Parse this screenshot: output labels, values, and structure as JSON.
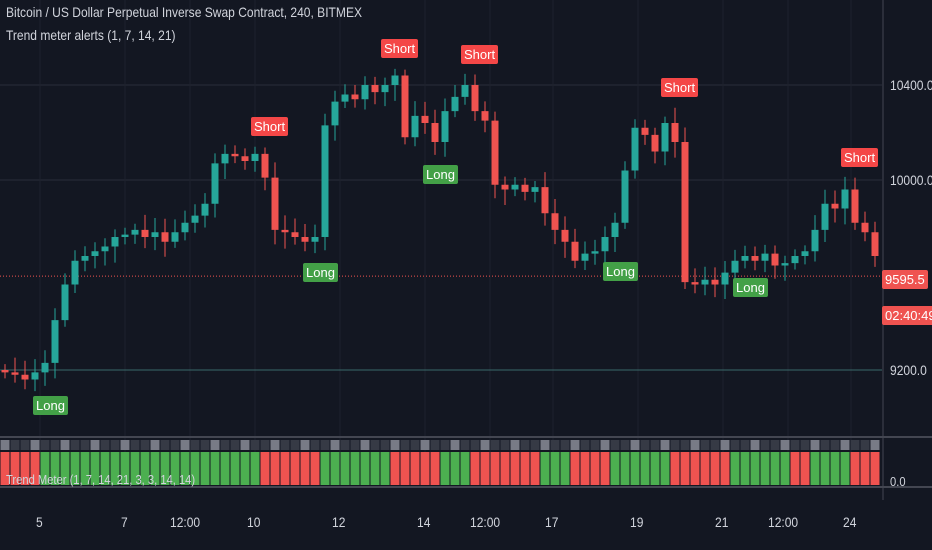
{
  "header": {
    "title": "Bitcoin / US Dollar Perpetual Inverse Swap Contract, 240, BITMEX",
    "indicator": "Trend meter alerts (1, 7, 14, 21)"
  },
  "panel": {
    "label": "Trend Meter (1, 7, 14, 21, 3, 3, 14, 14)",
    "axis_label": "0.0"
  },
  "price_axis": {
    "ticks": [
      "10400.0",
      "10000.0",
      "9200.0"
    ],
    "last_price": "9595.5",
    "countdown": "02:40:49"
  },
  "time_axis": {
    "ticks": [
      "5",
      "7",
      "12:00",
      "10",
      "12",
      "14",
      "12:00",
      "17",
      "19",
      "21",
      "12:00",
      "24"
    ]
  },
  "colors": {
    "background": "#131722",
    "up": "#26a69a",
    "down": "#ef5350",
    "long": "#43a047",
    "short": "#f44747"
  },
  "chart_data": {
    "type": "candlestick",
    "closes": [
      9190,
      9180,
      9160,
      9190,
      9230,
      9410,
      9560,
      9660,
      9680,
      9700,
      9720,
      9760,
      9770,
      9790,
      9760,
      9780,
      9740,
      9780,
      9820,
      9850,
      9900,
      10070,
      10110,
      10100,
      10080,
      10110,
      10010,
      9790,
      9780,
      9760,
      9740,
      9760,
      10230,
      10330,
      10360,
      10340,
      10400,
      10370,
      10400,
      10440,
      10180,
      10270,
      10240,
      10160,
      10290,
      10350,
      10400,
      10290,
      10250,
      9980,
      9960,
      9980,
      9950,
      9970,
      9860,
      9790,
      9740,
      9660,
      9690,
      9700,
      9760,
      9820,
      10040,
      10220,
      10190,
      10120,
      10240,
      10160,
      9570,
      9560,
      9580,
      9560,
      9610,
      9660,
      9680,
      9660,
      9690,
      9640,
      9650,
      9680,
      9700,
      9790,
      9900,
      9880,
      9960,
      9820,
      9780,
      9680
    ],
    "y_ticks": [
      10400,
      10000,
      9200
    ],
    "last_price": 9595.5,
    "signals": [
      {
        "type": "Short",
        "index": 26
      },
      {
        "type": "Short",
        "index": 39
      },
      {
        "type": "Short",
        "index": 47
      },
      {
        "type": "Short",
        "index": 67
      },
      {
        "type": "Short",
        "index": 85
      },
      {
        "type": "Long",
        "index": 4
      },
      {
        "type": "Long",
        "index": 31
      },
      {
        "type": "Long",
        "index": 43
      },
      {
        "type": "Long",
        "index": 61
      },
      {
        "type": "Long",
        "index": 74
      }
    ],
    "trend_meter": "RRRRGGGGGGGGGGGGGGGGGGGGGGRRRRRRGGGGGGGRRRRRGGGRRRRRRRGGGRRRRGGGGGGRRRRRRGGGGGGRRGGGGRRR"
  }
}
